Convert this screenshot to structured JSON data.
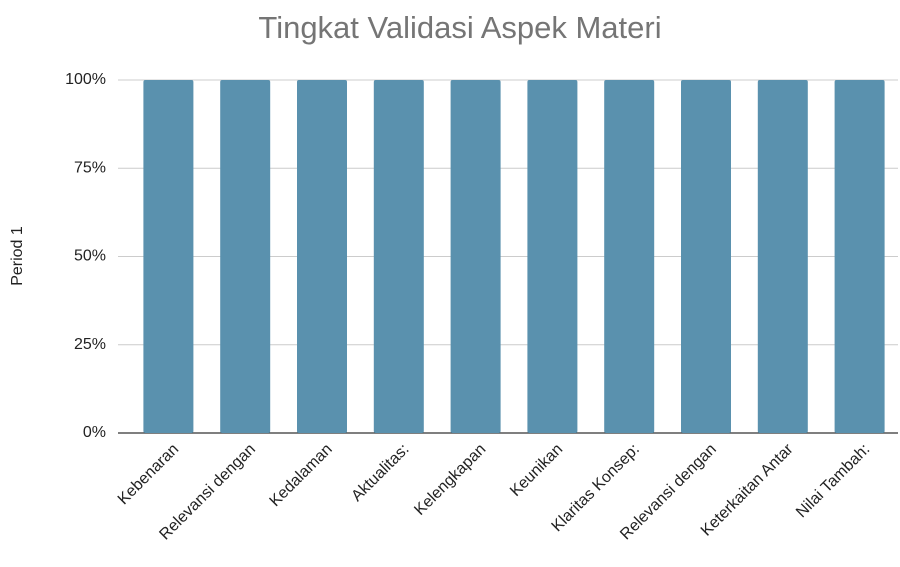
{
  "chart_data": {
    "type": "bar",
    "title": "Tingkat Validasi Aspek Materi",
    "y_label": "Period 1",
    "categories": [
      "Kebenaran",
      "Relevansi dengan",
      "Kedalaman",
      "Aktualitas:",
      "Kelengkapan",
      "Keunikan",
      "Klaritas Konsep:",
      "Relevansi dengan",
      "Keterkaitan Antar",
      "Nilai Tambah:"
    ],
    "values": [
      100,
      100,
      100,
      100,
      100,
      100,
      100,
      100,
      100,
      100
    ],
    "color": "#5a91ae",
    "ylim": [
      0,
      100
    ],
    "yticks": [
      {
        "value": 0,
        "label": "0%"
      },
      {
        "value": 25,
        "label": "25%"
      },
      {
        "value": 50,
        "label": "50%"
      },
      {
        "value": 75,
        "label": "75%"
      },
      {
        "value": 100,
        "label": "100%"
      }
    ],
    "grid": true
  }
}
